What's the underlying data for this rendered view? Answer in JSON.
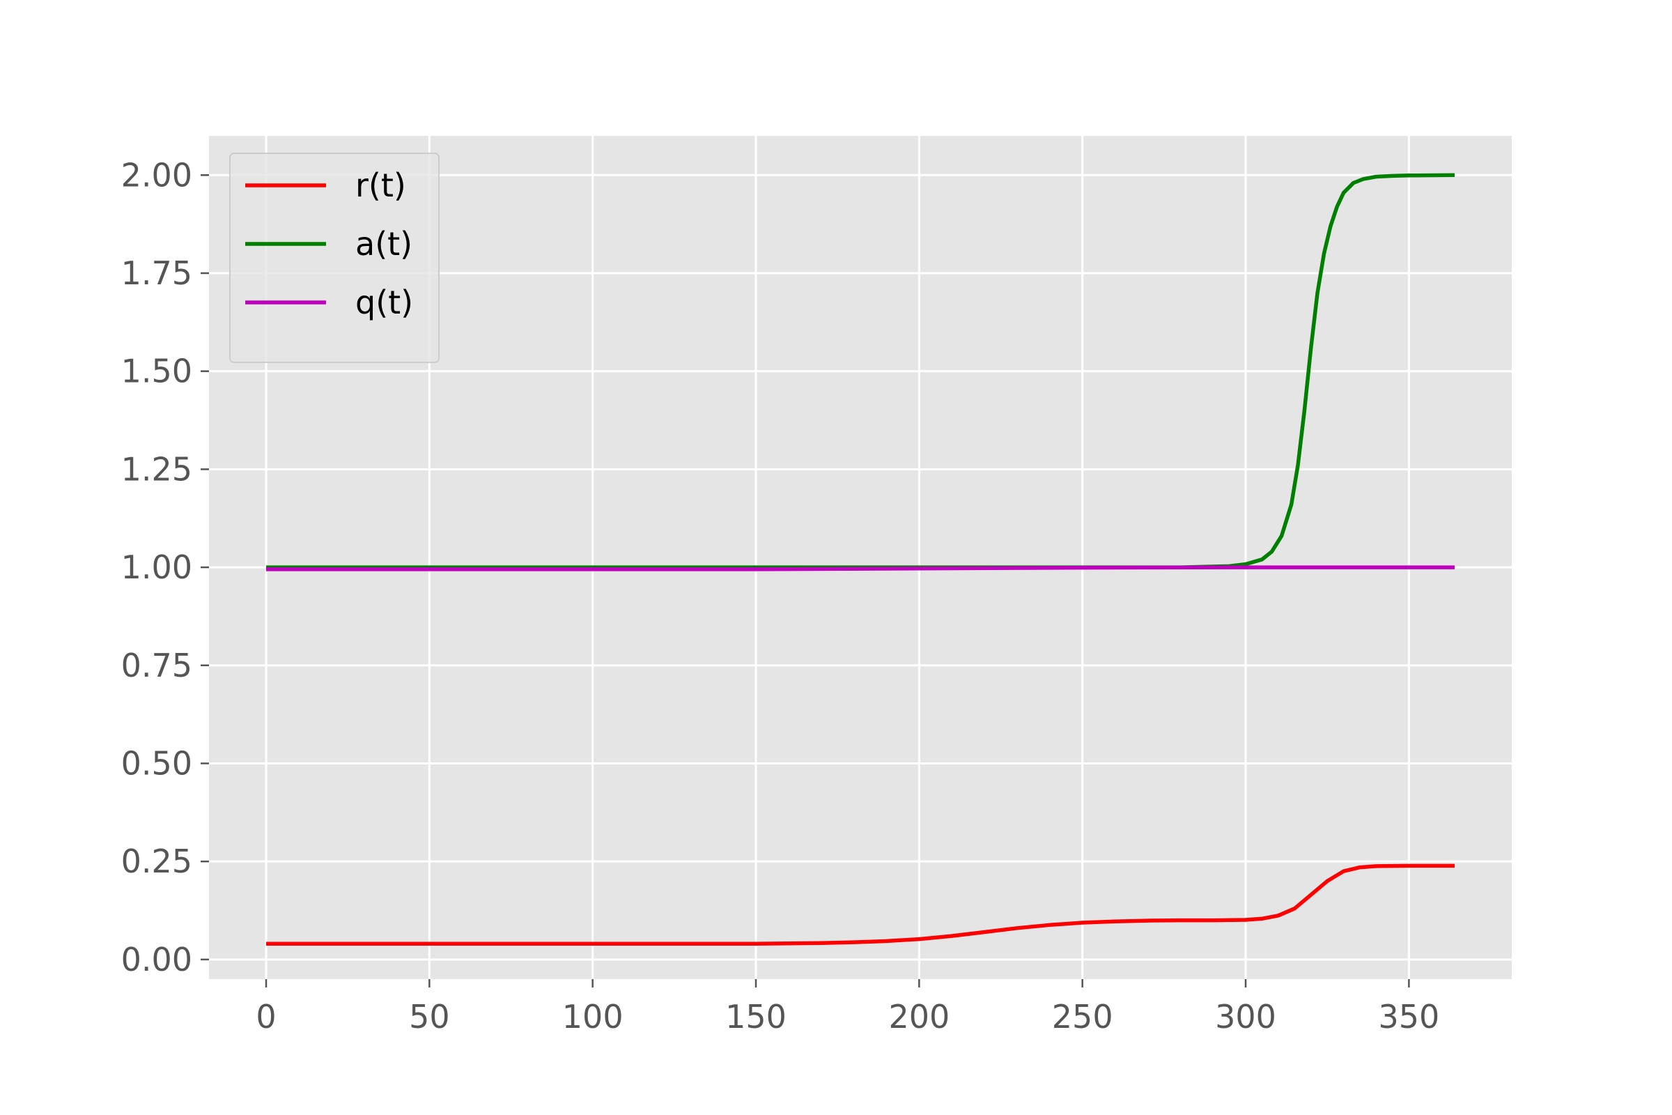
{
  "chart_data": {
    "type": "line",
    "title": "",
    "xlabel": "",
    "ylabel": "",
    "xlim": [
      -17.5,
      381.5
    ],
    "ylim": [
      -0.05,
      2.1
    ],
    "grid": true,
    "legend_position": "top-left",
    "background": "#e5e5e5",
    "grid_color": "#ffffff",
    "x_ticks": [
      0,
      50,
      100,
      150,
      200,
      250,
      300,
      350
    ],
    "x_tick_labels": [
      "0",
      "50",
      "100",
      "150",
      "200",
      "250",
      "300",
      "350"
    ],
    "y_ticks": [
      0,
      0.25,
      0.5,
      0.75,
      1.0,
      1.25,
      1.5,
      1.75,
      2.0
    ],
    "y_tick_labels": [
      "0.00",
      "0.25",
      "0.50",
      "0.75",
      "1.00",
      "1.25",
      "1.50",
      "1.75",
      "2.00"
    ],
    "series": [
      {
        "name": "r(t)",
        "color": "#ff0000",
        "x": [
          0,
          50,
          100,
          150,
          170,
          180,
          190,
          200,
          210,
          220,
          230,
          240,
          250,
          260,
          270,
          280,
          290,
          300,
          305,
          310,
          315,
          320,
          325,
          330,
          335,
          340,
          350,
          364
        ],
        "y": [
          0.04,
          0.04,
          0.04,
          0.04,
          0.042,
          0.044,
          0.047,
          0.052,
          0.06,
          0.07,
          0.08,
          0.088,
          0.094,
          0.097,
          0.099,
          0.1,
          0.1,
          0.101,
          0.104,
          0.112,
          0.13,
          0.165,
          0.2,
          0.225,
          0.235,
          0.238,
          0.239,
          0.239
        ]
      },
      {
        "name": "a(t)",
        "color": "#008000",
        "x": [
          0,
          100,
          200,
          250,
          280,
          295,
          300,
          305,
          308,
          311,
          314,
          316,
          318,
          320,
          322,
          324,
          326,
          328,
          330,
          333,
          336,
          340,
          345,
          350,
          364
        ],
        "y": [
          1.0,
          1.0,
          1.0,
          1.0,
          1.0,
          1.003,
          1.008,
          1.02,
          1.04,
          1.08,
          1.16,
          1.26,
          1.4,
          1.56,
          1.7,
          1.8,
          1.87,
          1.92,
          1.955,
          1.98,
          1.99,
          1.996,
          1.998,
          1.999,
          2.0
        ]
      },
      {
        "name": "q(t)",
        "color": "#bf00bf",
        "x": [
          0,
          100,
          150,
          200,
          250,
          300,
          364
        ],
        "y": [
          0.995,
          0.995,
          0.995,
          0.997,
          0.999,
          1.0,
          1.0
        ]
      }
    ]
  }
}
